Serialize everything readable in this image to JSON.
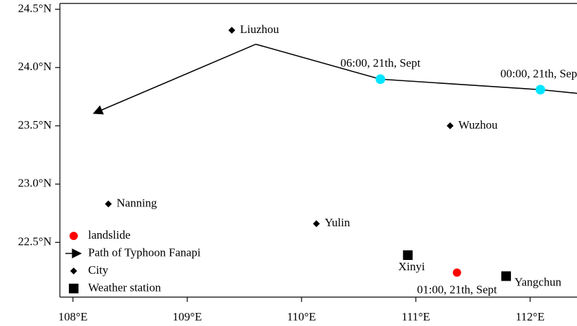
{
  "chart_data": {
    "type": "map",
    "xlim": [
      107.886,
      112.41
    ],
    "ylim": [
      22.03,
      24.55
    ],
    "xticks": [
      {
        "value": 108,
        "label": "108°E"
      },
      {
        "value": 109,
        "label": "109°E"
      },
      {
        "value": 110,
        "label": "110°E"
      },
      {
        "value": 111,
        "label": "111°E"
      },
      {
        "value": 112,
        "label": "112°E"
      }
    ],
    "yticks": [
      {
        "value": 22.5,
        "label": "22.5°N"
      },
      {
        "value": 23.0,
        "label": "23.0°N"
      },
      {
        "value": 23.5,
        "label": "23.5°N"
      },
      {
        "value": 24.0,
        "label": "24.0°N"
      },
      {
        "value": 24.5,
        "label": "24.5°N"
      }
    ],
    "legend": "lower left",
    "series": [
      {
        "name": "landslide",
        "marker": "circle",
        "color": "#ff0000",
        "x": [
          111.36
        ],
        "y": [
          22.24
        ],
        "labels": [
          "01:00, 21th, Sept"
        ]
      },
      {
        "name": "Path of Typhoon Fanapi",
        "marker": "arrow",
        "color": "#000000",
        "highlight_color": "#00e5ff",
        "x": [
          112.6,
          112.09,
          110.69,
          109.6,
          108.19
        ],
        "y": [
          23.76,
          23.81,
          23.9,
          24.2,
          23.61
        ],
        "labels": [
          null,
          "00:00, 21th, Sept",
          "06:00, 21th, Sept",
          null,
          null
        ]
      },
      {
        "name": "City",
        "marker": "diamond",
        "color": "#000000",
        "x": [
          109.39,
          111.3,
          108.31,
          110.13
        ],
        "y": [
          24.32,
          23.5,
          22.83,
          22.66
        ],
        "labels": [
          "Liuzhou",
          "Wuzhou",
          "Nanning",
          "Yulin"
        ]
      },
      {
        "name": "Weather station",
        "marker": "square",
        "color": "#000000",
        "x": [
          110.93,
          111.79
        ],
        "y": [
          22.39,
          22.21
        ],
        "labels": [
          "Xinyi",
          "Yangchun"
        ]
      }
    ]
  }
}
